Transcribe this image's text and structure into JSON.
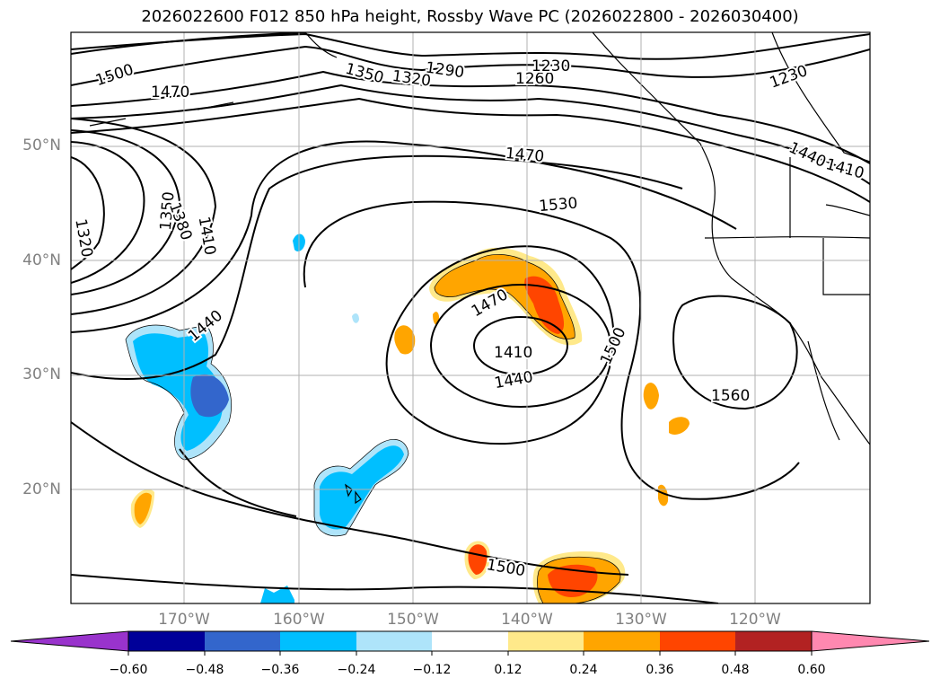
{
  "title": "2026022600 F012 850 hPa height, Rossby Wave PC (2026022800 - 2026030400)",
  "map": {
    "projection": "plate-carree",
    "lon_range": [
      -180,
      -110
    ],
    "lat_range": [
      10,
      60
    ],
    "gridlines": true,
    "coastlines": true,
    "borders": true,
    "lat_ticks": [
      {
        "label": "50°N"
      },
      {
        "label": "40°N"
      },
      {
        "label": "30°N"
      },
      {
        "label": "20°N"
      }
    ],
    "lon_ticks": [
      {
        "label": "170°W"
      },
      {
        "label": "160°W"
      },
      {
        "label": "150°W"
      },
      {
        "label": "140°W"
      },
      {
        "label": "130°W"
      },
      {
        "label": "120°W"
      }
    ],
    "contour_labels": [
      "1500",
      "1470",
      "1350",
      "1320",
      "1290",
      "1260",
      "1230",
      "1230",
      "1470",
      "1410",
      "1440",
      "1530",
      "1470",
      "1410",
      "1440",
      "1500",
      "1560",
      "1320",
      "1350",
      "1380",
      "1410",
      "1440",
      "1500"
    ]
  },
  "colorbar": {
    "ticks": [
      "−0.60",
      "−0.48",
      "−0.36",
      "−0.24",
      "−0.12",
      "0.12",
      "0.24",
      "0.36",
      "0.48",
      "0.60"
    ],
    "colors": [
      "#9933cc",
      "#000099",
      "#3366cc",
      "#00bfff",
      "#aee4fa",
      "#ffffff",
      "#ffe98a",
      "#ffa500",
      "#ff4500",
      "#b22222",
      "#ff88b0"
    ],
    "extend": "both"
  }
}
